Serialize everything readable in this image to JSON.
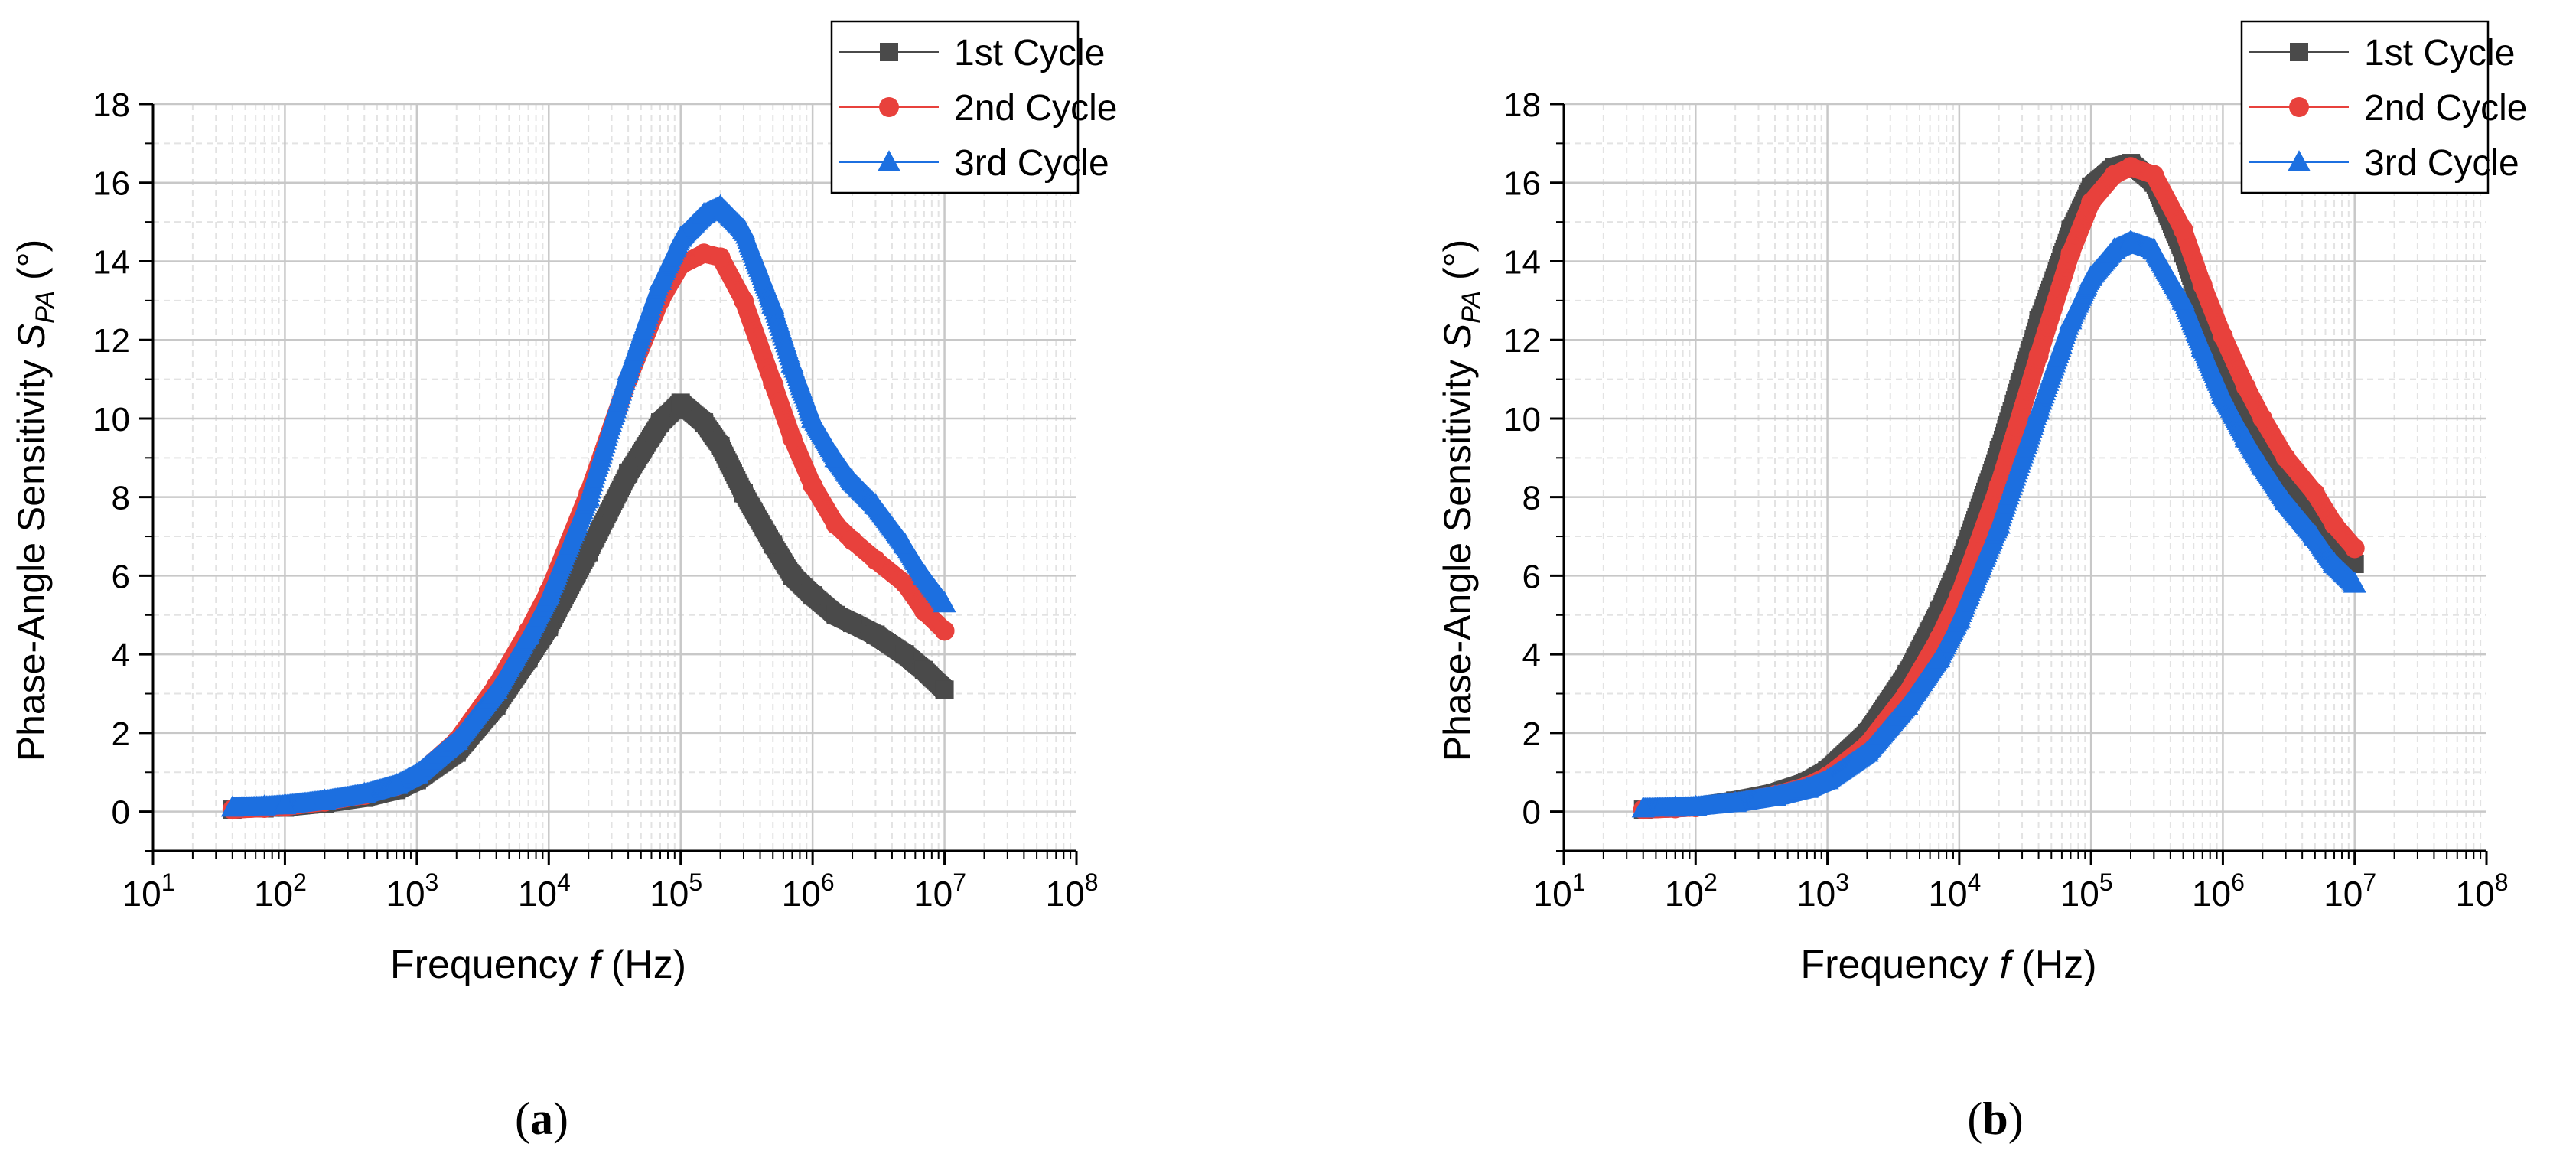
{
  "chart_data": [
    {
      "panel_label": "a",
      "type": "scatter",
      "x_scale": "log",
      "xlabel": {
        "prefix": "Frequency ",
        "var": "f",
        "suffix": " (Hz)"
      },
      "ylabel": {
        "prefix": "Phase-Angle Sensitivity ",
        "var": "S",
        "sub": "PA",
        "suffix": " (°)"
      },
      "xlim": [
        10,
        100000000
      ],
      "ylim": [
        -1,
        18
      ],
      "x_ticks": [
        {
          "base": "10",
          "exp": "1"
        },
        {
          "base": "10",
          "exp": "2"
        },
        {
          "base": "10",
          "exp": "3"
        },
        {
          "base": "10",
          "exp": "4"
        },
        {
          "base": "10",
          "exp": "5"
        },
        {
          "base": "10",
          "exp": "6"
        },
        {
          "base": "10",
          "exp": "7"
        },
        {
          "base": "10",
          "exp": "8"
        }
      ],
      "y_ticks": [
        "0",
        "2",
        "4",
        "6",
        "8",
        "10",
        "12",
        "14",
        "16",
        "18"
      ],
      "grid": true,
      "legend_position": "top-right",
      "series": [
        {
          "name": "1st Cycle",
          "color": "#4a4a4a",
          "marker": "square",
          "points": [
            [
              40,
              0.05
            ],
            [
              70,
              0.08
            ],
            [
              100,
              0.1
            ],
            [
              200,
              0.2
            ],
            [
              400,
              0.35
            ],
            [
              700,
              0.55
            ],
            [
              1000,
              0.8
            ],
            [
              2000,
              1.5
            ],
            [
              4000,
              2.7
            ],
            [
              7000,
              3.9
            ],
            [
              10000,
              4.7
            ],
            [
              20000,
              6.6
            ],
            [
              40000,
              8.6
            ],
            [
              70000,
              9.9
            ],
            [
              100000,
              10.4
            ],
            [
              150000,
              9.9
            ],
            [
              200000,
              9.3
            ],
            [
              300000,
              8.1
            ],
            [
              500000,
              6.8
            ],
            [
              700000,
              6.0
            ],
            [
              1000000,
              5.5
            ],
            [
              1500000,
              5.0
            ],
            [
              2000000,
              4.8
            ],
            [
              3000000,
              4.5
            ],
            [
              5000000,
              4.0
            ],
            [
              7000000,
              3.6
            ],
            [
              10000000,
              3.1
            ]
          ]
        },
        {
          "name": "2nd Cycle",
          "color": "#e8413c",
          "marker": "circle",
          "points": [
            [
              40,
              0.05
            ],
            [
              70,
              0.09
            ],
            [
              100,
              0.12
            ],
            [
              200,
              0.25
            ],
            [
              400,
              0.42
            ],
            [
              700,
              0.65
            ],
            [
              1000,
              0.9
            ],
            [
              2000,
              1.8
            ],
            [
              4000,
              3.2
            ],
            [
              7000,
              4.6
            ],
            [
              10000,
              5.6
            ],
            [
              20000,
              8.1
            ],
            [
              40000,
              11.0
            ],
            [
              70000,
              13.0
            ],
            [
              100000,
              13.9
            ],
            [
              150000,
              14.2
            ],
            [
              200000,
              14.1
            ],
            [
              300000,
              13.0
            ],
            [
              500000,
              10.9
            ],
            [
              700000,
              9.5
            ],
            [
              1000000,
              8.3
            ],
            [
              1500000,
              7.3
            ],
            [
              2000000,
              6.9
            ],
            [
              3000000,
              6.4
            ],
            [
              5000000,
              5.8
            ],
            [
              7000000,
              5.1
            ],
            [
              10000000,
              4.6
            ]
          ]
        },
        {
          "name": "3rd Cycle",
          "color": "#1c6fe0",
          "marker": "triangle",
          "points": [
            [
              40,
              0.1
            ],
            [
              70,
              0.13
            ],
            [
              100,
              0.16
            ],
            [
              200,
              0.28
            ],
            [
              400,
              0.45
            ],
            [
              700,
              0.68
            ],
            [
              1000,
              0.95
            ],
            [
              2000,
              1.8
            ],
            [
              4000,
              3.1
            ],
            [
              7000,
              4.5
            ],
            [
              10000,
              5.5
            ],
            [
              20000,
              8.0
            ],
            [
              40000,
              11.2
            ],
            [
              70000,
              13.5
            ],
            [
              100000,
              14.6
            ],
            [
              150000,
              15.2
            ],
            [
              200000,
              15.4
            ],
            [
              300000,
              14.8
            ],
            [
              500000,
              12.9
            ],
            [
              700000,
              11.4
            ],
            [
              1000000,
              10.0
            ],
            [
              1500000,
              9.0
            ],
            [
              2000000,
              8.4
            ],
            [
              3000000,
              7.8
            ],
            [
              5000000,
              6.8
            ],
            [
              7000000,
              6.0
            ],
            [
              10000000,
              5.3
            ]
          ]
        }
      ]
    },
    {
      "panel_label": "b",
      "type": "scatter",
      "x_scale": "log",
      "xlabel": {
        "prefix": "Frequency ",
        "var": "f",
        "suffix": " (Hz)"
      },
      "ylabel": {
        "prefix": "Phase-Angle Sensitivity ",
        "var": "S",
        "sub": "PA",
        "suffix": " (°)"
      },
      "xlim": [
        10,
        100000000
      ],
      "ylim": [
        -1,
        18
      ],
      "x_ticks": [
        {
          "base": "10",
          "exp": "1"
        },
        {
          "base": "10",
          "exp": "2"
        },
        {
          "base": "10",
          "exp": "3"
        },
        {
          "base": "10",
          "exp": "4"
        },
        {
          "base": "10",
          "exp": "5"
        },
        {
          "base": "10",
          "exp": "6"
        },
        {
          "base": "10",
          "exp": "7"
        },
        {
          "base": "10",
          "exp": "8"
        }
      ],
      "y_ticks": [
        "0",
        "2",
        "4",
        "6",
        "8",
        "10",
        "12",
        "14",
        "16",
        "18"
      ],
      "grid": true,
      "legend_position": "top-right",
      "series": [
        {
          "name": "1st Cycle",
          "color": "#4a4a4a",
          "marker": "square",
          "points": [
            [
              40,
              0.05
            ],
            [
              70,
              0.1
            ],
            [
              100,
              0.13
            ],
            [
              200,
              0.28
            ],
            [
              400,
              0.48
            ],
            [
              700,
              0.75
            ],
            [
              1000,
              1.05
            ],
            [
              2000,
              2.0
            ],
            [
              4000,
              3.5
            ],
            [
              7000,
              5.1
            ],
            [
              10000,
              6.3
            ],
            [
              20000,
              9.2
            ],
            [
              40000,
              12.5
            ],
            [
              70000,
              14.8
            ],
            [
              100000,
              15.9
            ],
            [
              150000,
              16.4
            ],
            [
              200000,
              16.5
            ],
            [
              300000,
              16.0
            ],
            [
              500000,
              14.2
            ],
            [
              700000,
              12.7
            ],
            [
              1000000,
              11.3
            ],
            [
              1500000,
              10.1
            ],
            [
              2000000,
              9.3
            ],
            [
              3000000,
              8.3
            ],
            [
              5000000,
              7.4
            ],
            [
              7000000,
              6.8
            ],
            [
              10000000,
              6.3
            ]
          ]
        },
        {
          "name": "2nd Cycle",
          "color": "#e8413c",
          "marker": "circle",
          "points": [
            [
              40,
              0.05
            ],
            [
              70,
              0.08
            ],
            [
              100,
              0.11
            ],
            [
              200,
              0.24
            ],
            [
              400,
              0.42
            ],
            [
              700,
              0.65
            ],
            [
              1000,
              0.9
            ],
            [
              2000,
              1.7
            ],
            [
              4000,
              3.0
            ],
            [
              7000,
              4.4
            ],
            [
              10000,
              5.5
            ],
            [
              20000,
              8.3
            ],
            [
              40000,
              11.6
            ],
            [
              70000,
              14.2
            ],
            [
              100000,
              15.5
            ],
            [
              150000,
              16.2
            ],
            [
              200000,
              16.4
            ],
            [
              300000,
              16.2
            ],
            [
              500000,
              14.8
            ],
            [
              700000,
              13.4
            ],
            [
              1000000,
              12.1
            ],
            [
              1500000,
              10.8
            ],
            [
              2000000,
              10.0
            ],
            [
              3000000,
              9.0
            ],
            [
              5000000,
              8.1
            ],
            [
              7000000,
              7.3
            ],
            [
              10000000,
              6.7
            ]
          ]
        },
        {
          "name": "3rd Cycle",
          "color": "#1c6fe0",
          "marker": "triangle",
          "points": [
            [
              40,
              0.08
            ],
            [
              70,
              0.1
            ],
            [
              100,
              0.12
            ],
            [
              200,
              0.22
            ],
            [
              400,
              0.38
            ],
            [
              700,
              0.58
            ],
            [
              1000,
              0.8
            ],
            [
              2000,
              1.5
            ],
            [
              4000,
              2.7
            ],
            [
              7000,
              3.9
            ],
            [
              10000,
              4.9
            ],
            [
              20000,
              7.3
            ],
            [
              40000,
              10.2
            ],
            [
              70000,
              12.5
            ],
            [
              100000,
              13.6
            ],
            [
              150000,
              14.3
            ],
            [
              200000,
              14.5
            ],
            [
              300000,
              14.3
            ],
            [
              500000,
              13.0
            ],
            [
              700000,
              11.8
            ],
            [
              1000000,
              10.6
            ],
            [
              1500000,
              9.5
            ],
            [
              2000000,
              8.8
            ],
            [
              3000000,
              7.9
            ],
            [
              5000000,
              7.0
            ],
            [
              7000000,
              6.3
            ],
            [
              10000000,
              5.8
            ]
          ]
        }
      ]
    }
  ]
}
